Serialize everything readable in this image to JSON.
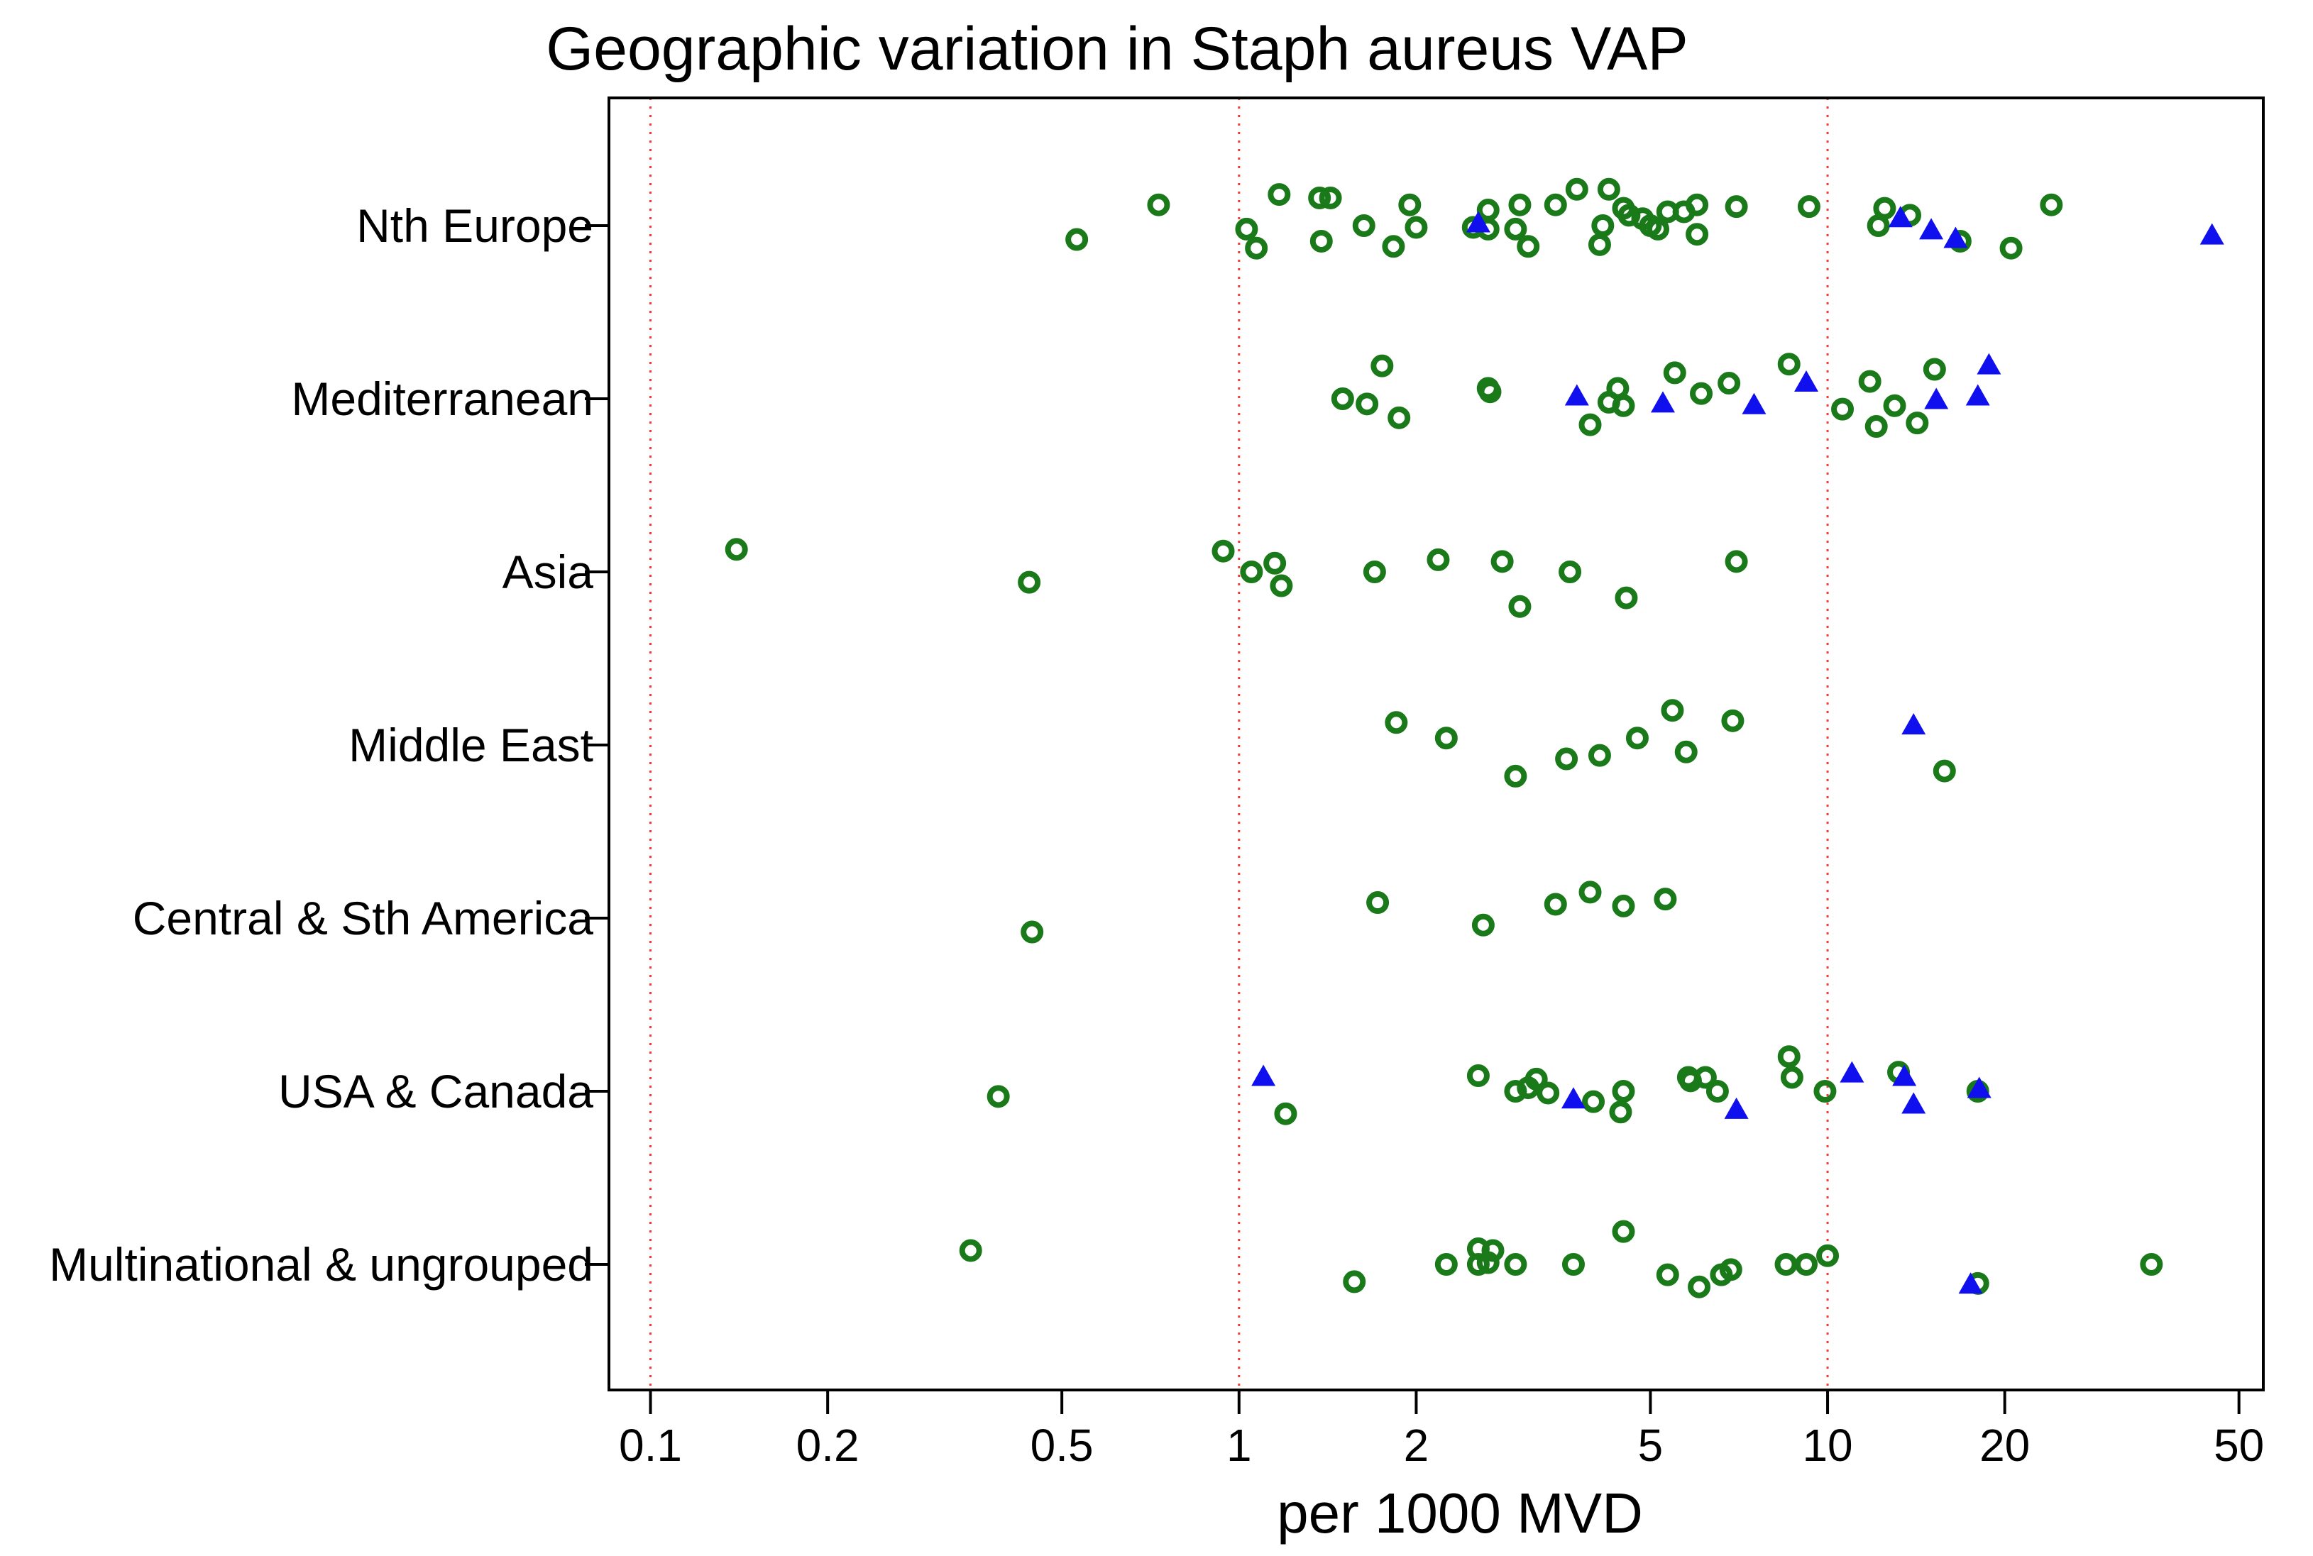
{
  "chart_data": {
    "type": "scatter",
    "title": "Geographic variation in Staph aureus VAP",
    "xlabel": "per 1000 MVD",
    "ylabel": "",
    "xscale": "log",
    "xlim": [
      0.085,
      55
    ],
    "xticks": [
      0.1,
      0.2,
      0.5,
      1,
      2,
      5,
      10,
      20,
      50
    ],
    "xtick_labels": [
      "0.1",
      "0.2",
      "0.5",
      "1",
      "2",
      "5",
      "10",
      "20",
      "50"
    ],
    "reference_lines_x": [
      0.1,
      1,
      10
    ],
    "categories": [
      "Nth Europe",
      "Mediterranean",
      "Asia",
      "Middle East",
      "Central & Sth America",
      "USA & Canada",
      "Multinational & ungrouped"
    ],
    "colors": {
      "circle": "#1a7a1a",
      "triangle": "#1010ee",
      "refline": "#ff3333"
    },
    "series": [
      {
        "name": "circle",
        "marker": "circle",
        "points": [
          {
            "category": "Nth Europe",
            "jitter": -0.12,
            "x": 0.73
          },
          {
            "category": "Nth Europe",
            "jitter": 0.08,
            "x": 0.53
          },
          {
            "category": "Nth Europe",
            "jitter": -0.18,
            "x": 1.17
          },
          {
            "category": "Nth Europe",
            "jitter": 0.02,
            "x": 1.03
          },
          {
            "category": "Nth Europe",
            "jitter": 0.13,
            "x": 1.07
          },
          {
            "category": "Nth Europe",
            "jitter": -0.16,
            "x": 1.37
          },
          {
            "category": "Nth Europe",
            "jitter": -0.16,
            "x": 1.43
          },
          {
            "category": "Nth Europe",
            "jitter": 0.09,
            "x": 1.38
          },
          {
            "category": "Nth Europe",
            "jitter": 0.0,
            "x": 1.63
          },
          {
            "category": "Nth Europe",
            "jitter": -0.12,
            "x": 1.95
          },
          {
            "category": "Nth Europe",
            "jitter": 0.01,
            "x": 2.0
          },
          {
            "category": "Nth Europe",
            "jitter": 0.12,
            "x": 1.83
          },
          {
            "category": "Nth Europe",
            "jitter": 0.01,
            "x": 2.5
          },
          {
            "category": "Nth Europe",
            "jitter": -0.09,
            "x": 2.65
          },
          {
            "category": "Nth Europe",
            "jitter": 0.02,
            "x": 2.65
          },
          {
            "category": "Nth Europe",
            "jitter": -0.12,
            "x": 3.0
          },
          {
            "category": "Nth Europe",
            "jitter": 0.02,
            "x": 2.95
          },
          {
            "category": "Nth Europe",
            "jitter": 0.12,
            "x": 3.1
          },
          {
            "category": "Nth Europe",
            "jitter": -0.12,
            "x": 3.45
          },
          {
            "category": "Nth Europe",
            "jitter": -0.21,
            "x": 3.75
          },
          {
            "category": "Nth Europe",
            "jitter": -0.1,
            "x": 4.5
          },
          {
            "category": "Nth Europe",
            "jitter": -0.21,
            "x": 4.25
          },
          {
            "category": "Nth Europe",
            "jitter": 0.0,
            "x": 4.15
          },
          {
            "category": "Nth Europe",
            "jitter": 0.11,
            "x": 4.1
          },
          {
            "category": "Nth Europe",
            "jitter": -0.06,
            "x": 4.6
          },
          {
            "category": "Nth Europe",
            "jitter": -0.04,
            "x": 4.85
          },
          {
            "category": "Nth Europe",
            "jitter": 0.0,
            "x": 5.0
          },
          {
            "category": "Nth Europe",
            "jitter": 0.02,
            "x": 5.15
          },
          {
            "category": "Nth Europe",
            "jitter": -0.08,
            "x": 5.35
          },
          {
            "category": "Nth Europe",
            "jitter": -0.08,
            "x": 5.7
          },
          {
            "category": "Nth Europe",
            "jitter": -0.12,
            "x": 6.0
          },
          {
            "category": "Nth Europe",
            "jitter": 0.05,
            "x": 6.0
          },
          {
            "category": "Nth Europe",
            "jitter": -0.11,
            "x": 7.0
          },
          {
            "category": "Nth Europe",
            "jitter": -0.11,
            "x": 9.3
          },
          {
            "category": "Nth Europe",
            "jitter": -0.1,
            "x": 12.5
          },
          {
            "category": "Nth Europe",
            "jitter": 0.0,
            "x": 12.2
          },
          {
            "category": "Nth Europe",
            "jitter": -0.06,
            "x": 13.8
          },
          {
            "category": "Nth Europe",
            "jitter": 0.09,
            "x": 16.8
          },
          {
            "category": "Nth Europe",
            "jitter": 0.13,
            "x": 20.5
          },
          {
            "category": "Nth Europe",
            "jitter": -0.12,
            "x": 24.0
          },
          {
            "category": "Mediterranean",
            "jitter": -0.19,
            "x": 1.75
          },
          {
            "category": "Mediterranean",
            "jitter": 0.0,
            "x": 1.5
          },
          {
            "category": "Mediterranean",
            "jitter": 0.03,
            "x": 1.65
          },
          {
            "category": "Mediterranean",
            "jitter": 0.11,
            "x": 1.87
          },
          {
            "category": "Mediterranean",
            "jitter": -0.06,
            "x": 2.65
          },
          {
            "category": "Mediterranean",
            "jitter": -0.04,
            "x": 2.67
          },
          {
            "category": "Mediterranean",
            "jitter": 0.15,
            "x": 3.95
          },
          {
            "category": "Mediterranean",
            "jitter": -0.06,
            "x": 4.4
          },
          {
            "category": "Mediterranean",
            "jitter": 0.02,
            "x": 4.25
          },
          {
            "category": "Mediterranean",
            "jitter": 0.04,
            "x": 4.5
          },
          {
            "category": "Mediterranean",
            "jitter": -0.15,
            "x": 5.5
          },
          {
            "category": "Mediterranean",
            "jitter": -0.03,
            "x": 6.1
          },
          {
            "category": "Mediterranean",
            "jitter": -0.09,
            "x": 6.8
          },
          {
            "category": "Mediterranean",
            "jitter": -0.2,
            "x": 8.6
          },
          {
            "category": "Mediterranean",
            "jitter": 0.06,
            "x": 10.6
          },
          {
            "category": "Mediterranean",
            "jitter": -0.1,
            "x": 11.8
          },
          {
            "category": "Mediterranean",
            "jitter": 0.16,
            "x": 12.1
          },
          {
            "category": "Mediterranean",
            "jitter": 0.04,
            "x": 13.0
          },
          {
            "category": "Mediterranean",
            "jitter": -0.17,
            "x": 15.2
          },
          {
            "category": "Mediterranean",
            "jitter": 0.14,
            "x": 14.2
          },
          {
            "category": "Asia",
            "jitter": -0.13,
            "x": 0.14
          },
          {
            "category": "Asia",
            "jitter": 0.06,
            "x": 0.44
          },
          {
            "category": "Asia",
            "jitter": -0.12,
            "x": 0.94
          },
          {
            "category": "Asia",
            "jitter": -0.05,
            "x": 1.15
          },
          {
            "category": "Asia",
            "jitter": 0.0,
            "x": 1.05
          },
          {
            "category": "Asia",
            "jitter": 0.08,
            "x": 1.18
          },
          {
            "category": "Asia",
            "jitter": 0.0,
            "x": 1.7
          },
          {
            "category": "Asia",
            "jitter": -0.07,
            "x": 2.18
          },
          {
            "category": "Asia",
            "jitter": -0.06,
            "x": 2.8
          },
          {
            "category": "Asia",
            "jitter": 0.2,
            "x": 3.0
          },
          {
            "category": "Asia",
            "jitter": 0.0,
            "x": 3.65
          },
          {
            "category": "Asia",
            "jitter": 0.15,
            "x": 4.55
          },
          {
            "category": "Asia",
            "jitter": -0.06,
            "x": 7.0
          },
          {
            "category": "Middle East",
            "jitter": -0.13,
            "x": 1.85
          },
          {
            "category": "Middle East",
            "jitter": -0.04,
            "x": 2.25
          },
          {
            "category": "Middle East",
            "jitter": 0.18,
            "x": 2.95
          },
          {
            "category": "Middle East",
            "jitter": 0.08,
            "x": 3.6
          },
          {
            "category": "Middle East",
            "jitter": 0.06,
            "x": 4.1
          },
          {
            "category": "Middle East",
            "jitter": -0.04,
            "x": 4.75
          },
          {
            "category": "Middle East",
            "jitter": -0.2,
            "x": 5.45
          },
          {
            "category": "Middle East",
            "jitter": 0.04,
            "x": 5.75
          },
          {
            "category": "Middle East",
            "jitter": -0.14,
            "x": 6.9
          },
          {
            "category": "Middle East",
            "jitter": 0.15,
            "x": 15.8
          },
          {
            "category": "Central & Sth America",
            "jitter": 0.08,
            "x": 0.445
          },
          {
            "category": "Central & Sth America",
            "jitter": -0.09,
            "x": 1.72
          },
          {
            "category": "Central & Sth America",
            "jitter": 0.04,
            "x": 2.6
          },
          {
            "category": "Central & Sth America",
            "jitter": -0.08,
            "x": 3.45
          },
          {
            "category": "Central & Sth America",
            "jitter": -0.15,
            "x": 3.95
          },
          {
            "category": "Central & Sth America",
            "jitter": -0.07,
            "x": 4.5
          },
          {
            "category": "Central & Sth America",
            "jitter": -0.11,
            "x": 5.3
          },
          {
            "category": "USA & Canada",
            "jitter": 0.03,
            "x": 0.39
          },
          {
            "category": "USA & Canada",
            "jitter": 0.13,
            "x": 1.2
          },
          {
            "category": "USA & Canada",
            "jitter": -0.09,
            "x": 2.55
          },
          {
            "category": "USA & Canada",
            "jitter": 0.0,
            "x": 2.95
          },
          {
            "category": "USA & Canada",
            "jitter": -0.02,
            "x": 3.1
          },
          {
            "category": "USA & Canada",
            "jitter": -0.07,
            "x": 3.2
          },
          {
            "category": "USA & Canada",
            "jitter": 0.01,
            "x": 3.35
          },
          {
            "category": "USA & Canada",
            "jitter": 0.06,
            "x": 4.0
          },
          {
            "category": "USA & Canada",
            "jitter": 0.0,
            "x": 4.5
          },
          {
            "category": "USA & Canada",
            "jitter": 0.12,
            "x": 4.45
          },
          {
            "category": "USA & Canada",
            "jitter": -0.08,
            "x": 5.8
          },
          {
            "category": "USA & Canada",
            "jitter": -0.06,
            "x": 5.85
          },
          {
            "category": "USA & Canada",
            "jitter": -0.08,
            "x": 6.2
          },
          {
            "category": "USA & Canada",
            "jitter": 0.0,
            "x": 6.5
          },
          {
            "category": "USA & Canada",
            "jitter": -0.2,
            "x": 8.6
          },
          {
            "category": "USA & Canada",
            "jitter": -0.08,
            "x": 8.7
          },
          {
            "category": "USA & Canada",
            "jitter": 0.0,
            "x": 9.9
          },
          {
            "category": "USA & Canada",
            "jitter": -0.11,
            "x": 13.2
          },
          {
            "category": "USA & Canada",
            "jitter": 0.0,
            "x": 18.0
          },
          {
            "category": "Multinational & ungrouped",
            "jitter": -0.08,
            "x": 0.35
          },
          {
            "category": "Multinational & ungrouped",
            "jitter": 0.1,
            "x": 1.57
          },
          {
            "category": "Multinational & ungrouped",
            "jitter": 0.0,
            "x": 2.25
          },
          {
            "category": "Multinational & ungrouped",
            "jitter": -0.09,
            "x": 2.55
          },
          {
            "category": "Multinational & ungrouped",
            "jitter": -0.08,
            "x": 2.7
          },
          {
            "category": "Multinational & ungrouped",
            "jitter": 0.0,
            "x": 2.55
          },
          {
            "category": "Multinational & ungrouped",
            "jitter": -0.01,
            "x": 2.65
          },
          {
            "category": "Multinational & ungrouped",
            "jitter": 0.0,
            "x": 2.95
          },
          {
            "category": "Multinational & ungrouped",
            "jitter": 0.0,
            "x": 3.7
          },
          {
            "category": "Multinational & ungrouped",
            "jitter": -0.19,
            "x": 4.5
          },
          {
            "category": "Multinational & ungrouped",
            "jitter": 0.06,
            "x": 5.35
          },
          {
            "category": "Multinational & ungrouped",
            "jitter": 0.13,
            "x": 6.05
          },
          {
            "category": "Multinational & ungrouped",
            "jitter": 0.06,
            "x": 6.6
          },
          {
            "category": "Multinational & ungrouped",
            "jitter": 0.03,
            "x": 6.85
          },
          {
            "category": "Multinational & ungrouped",
            "jitter": 0.0,
            "x": 8.5
          },
          {
            "category": "Multinational & ungrouped",
            "jitter": 0.0,
            "x": 9.2
          },
          {
            "category": "Multinational & ungrouped",
            "jitter": -0.05,
            "x": 10.0
          },
          {
            "category": "Multinational & ungrouped",
            "jitter": 0.11,
            "x": 18.0
          },
          {
            "category": "Multinational & ungrouped",
            "jitter": 0.0,
            "x": 35.5
          }
        ]
      },
      {
        "name": "triangle",
        "marker": "triangle",
        "points": [
          {
            "category": "Nth Europe",
            "jitter": -0.01,
            "x": 2.55
          },
          {
            "category": "Nth Europe",
            "jitter": -0.04,
            "x": 13.3
          },
          {
            "category": "Nth Europe",
            "jitter": 0.03,
            "x": 15.0
          },
          {
            "category": "Nth Europe",
            "jitter": 0.08,
            "x": 16.5
          },
          {
            "category": "Nth Europe",
            "jitter": 0.06,
            "x": 45.0
          },
          {
            "category": "Mediterranean",
            "jitter": -0.19,
            "x": 18.8
          },
          {
            "category": "Mediterranean",
            "jitter": -0.09,
            "x": 9.2
          },
          {
            "category": "Mediterranean",
            "jitter": -0.01,
            "x": 3.75
          },
          {
            "category": "Mediterranean",
            "jitter": -0.01,
            "x": 18.0
          },
          {
            "category": "Mediterranean",
            "jitter": 0.01,
            "x": 15.3
          },
          {
            "category": "Mediterranean",
            "jitter": 0.03,
            "x": 5.25
          },
          {
            "category": "Mediterranean",
            "jitter": 0.04,
            "x": 7.5
          },
          {
            "category": "Middle East",
            "jitter": -0.11,
            "x": 14.0
          },
          {
            "category": "USA & Canada",
            "jitter": -0.08,
            "x": 1.1
          },
          {
            "category": "USA & Canada",
            "jitter": -0.1,
            "x": 11.0
          },
          {
            "category": "USA & Canada",
            "jitter": -0.08,
            "x": 13.5
          },
          {
            "category": "USA & Canada",
            "jitter": -0.01,
            "x": 18.1
          },
          {
            "category": "USA & Canada",
            "jitter": 0.05,
            "x": 3.7
          },
          {
            "category": "USA & Canada",
            "jitter": 0.08,
            "x": 14.0
          },
          {
            "category": "USA & Canada",
            "jitter": 0.11,
            "x": 7.0
          },
          {
            "category": "Multinational & ungrouped",
            "jitter": 0.12,
            "x": 17.5
          }
        ]
      }
    ]
  }
}
